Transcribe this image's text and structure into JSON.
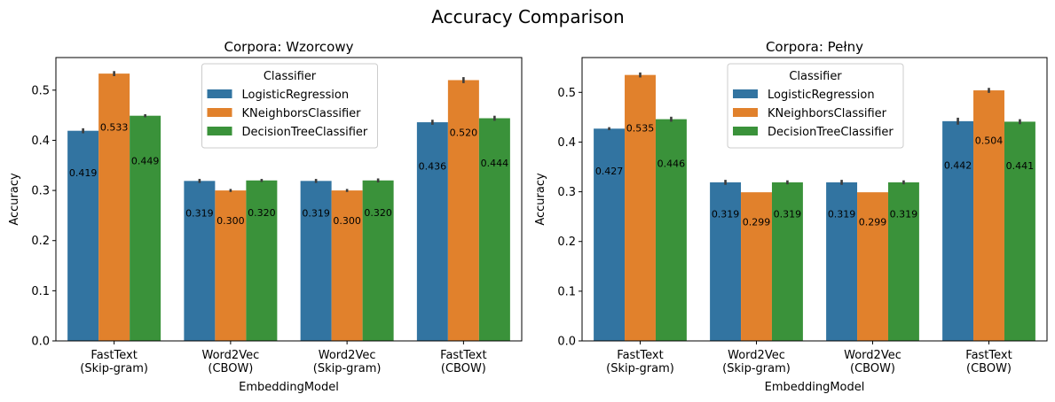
{
  "suptitle": "Accuracy Comparison",
  "chart_data": [
    {
      "type": "bar",
      "title": "Corpora: Wzorcowy",
      "xlabel": "EmbeddingModel",
      "ylabel": "Accuracy",
      "ylim": [
        0,
        0.565
      ],
      "yticks": [
        "0.0",
        "0.1",
        "0.2",
        "0.3",
        "0.4",
        "0.5"
      ],
      "categories": [
        [
          "FastText",
          "(Skip-gram)"
        ],
        [
          "Word2Vec",
          "(CBOW)"
        ],
        [
          "Word2Vec",
          "(Skip-gram)"
        ],
        [
          "FastText",
          "(CBOW)"
        ]
      ],
      "legend": {
        "title": "Classifier",
        "position": "upper center"
      },
      "series": [
        {
          "name": "LogisticRegression",
          "color": "#3274a1",
          "values": [
            0.419,
            0.319,
            0.319,
            0.436
          ],
          "labels": [
            "0.419",
            "0.319",
            "0.319",
            "0.436"
          ],
          "err": [
            0.005,
            0.004,
            0.004,
            0.005
          ]
        },
        {
          "name": "KNeighborsClassifier",
          "color": "#e1812c",
          "values": [
            0.533,
            0.3,
            0.3,
            0.52
          ],
          "labels": [
            "0.533",
            "0.300",
            "0.300",
            "0.520"
          ],
          "err": [
            0.005,
            0.003,
            0.003,
            0.006
          ]
        },
        {
          "name": "DecisionTreeClassifier",
          "color": "#3a923a",
          "values": [
            0.449,
            0.32,
            0.32,
            0.444
          ],
          "labels": [
            "0.449",
            "0.320",
            "0.320",
            "0.444"
          ],
          "err": [
            0.003,
            0.003,
            0.004,
            0.005
          ]
        }
      ]
    },
    {
      "type": "bar",
      "title": "Corpora: Pełny",
      "xlabel": "EmbeddingModel",
      "ylabel": "Accuracy",
      "ylim": [
        0,
        0.57
      ],
      "yticks": [
        "0.0",
        "0.1",
        "0.2",
        "0.3",
        "0.4",
        "0.5"
      ],
      "categories": [
        [
          "FastText",
          "(Skip-gram)"
        ],
        [
          "Word2Vec",
          "(Skip-gram)"
        ],
        [
          "Word2Vec",
          "(CBOW)"
        ],
        [
          "FastText",
          "(CBOW)"
        ]
      ],
      "legend": {
        "title": "Classifier",
        "position": "upper center"
      },
      "series": [
        {
          "name": "LogisticRegression",
          "color": "#3274a1",
          "values": [
            0.427,
            0.319,
            0.319,
            0.442
          ],
          "labels": [
            "0.427",
            "0.319",
            "0.319",
            "0.442"
          ],
          "err": [
            0.003,
            0.005,
            0.005,
            0.007
          ]
        },
        {
          "name": "KNeighborsClassifier",
          "color": "#e1812c",
          "values": [
            0.535,
            0.299,
            0.299,
            0.504
          ],
          "labels": [
            "0.535",
            "0.299",
            "0.299",
            "0.504"
          ],
          "err": [
            0.005,
            0,
            0,
            0.005
          ]
        },
        {
          "name": "DecisionTreeClassifier",
          "color": "#3a923a",
          "values": [
            0.446,
            0.319,
            0.319,
            0.441
          ],
          "labels": [
            "0.446",
            "0.319",
            "0.319",
            "0.441"
          ],
          "err": [
            0.005,
            0.004,
            0.004,
            0.005
          ]
        }
      ]
    }
  ]
}
